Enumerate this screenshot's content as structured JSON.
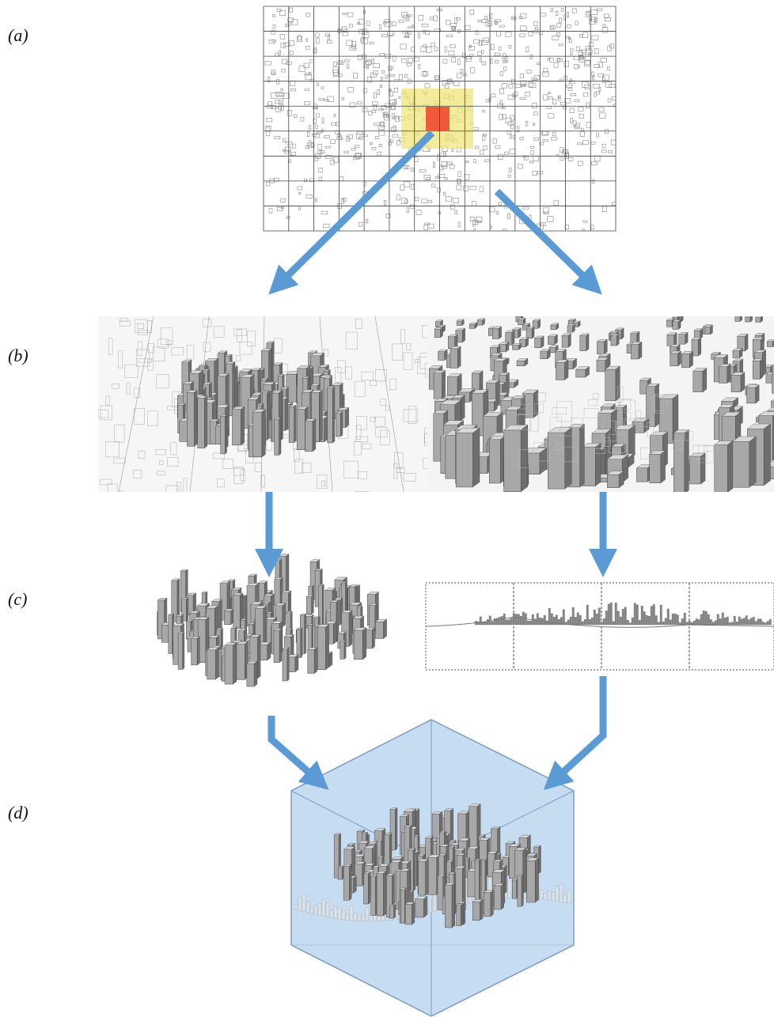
{
  "panels": {
    "a": {
      "label": "(a)"
    },
    "b": {
      "label": "(b)"
    },
    "c": {
      "label": "(c)"
    },
    "d": {
      "label": "(d)"
    }
  }
}
